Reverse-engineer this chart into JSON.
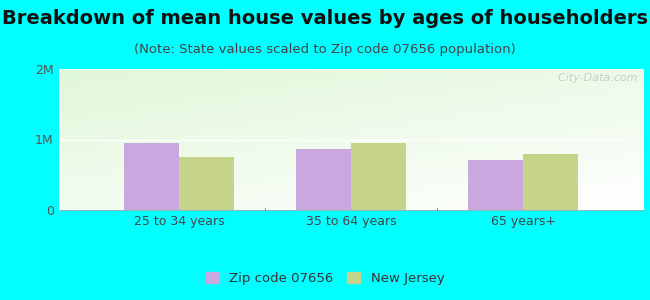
{
  "title": "Breakdown of mean house values by ages of householders",
  "subtitle": "(Note: State values scaled to Zip code 07656 population)",
  "categories": [
    "25 to 34 years",
    "35 to 64 years",
    "65 years+"
  ],
  "zip_values": [
    950000,
    870000,
    710000
  ],
  "nj_values": [
    750000,
    950000,
    790000
  ],
  "zip_color": "#c9a8df",
  "nj_color": "#c5d48a",
  "background_outer": "#00ffff",
  "ylim": [
    0,
    2000000
  ],
  "yticks": [
    0,
    1000000,
    2000000
  ],
  "ytick_labels": [
    "0",
    "1M",
    "2M"
  ],
  "legend_zip_label": "Zip code 07656",
  "legend_nj_label": "New Jersey",
  "bar_width": 0.32,
  "watermark": "  City-Data.com",
  "title_fontsize": 14,
  "subtitle_fontsize": 9.5,
  "tick_fontsize": 9,
  "legend_fontsize": 9.5
}
